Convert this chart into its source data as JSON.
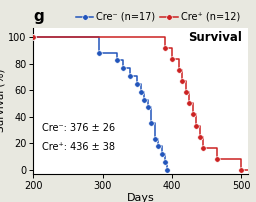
{
  "title": "Survival",
  "xlabel": "Days",
  "ylabel": "Survival (%)",
  "xlim": [
    200,
    510
  ],
  "ylim": [
    -3,
    107
  ],
  "xticks": [
    200,
    300,
    400,
    500
  ],
  "yticks": [
    0,
    20,
    40,
    60,
    80,
    100
  ],
  "panel_label": "g",
  "blue_label": "Cre⁻ (n=17)",
  "red_label": "Cre⁺ (n=12)",
  "annotation_line1": "Cre⁻: 376 ± 26",
  "annotation_line2": "Cre⁺: 436 ± 38",
  "blue_color": "#2255bb",
  "red_color": "#cc2222",
  "blue_x": [
    200,
    290,
    295,
    310,
    320,
    330,
    340,
    350,
    355,
    360,
    365,
    370,
    375,
    380,
    385,
    390,
    393,
    396
  ],
  "blue_y": [
    100,
    100,
    88.2,
    88.2,
    82.4,
    76.5,
    70.6,
    64.7,
    58.8,
    52.9,
    47.1,
    35.3,
    23.5,
    17.6,
    11.8,
    5.9,
    0,
    0
  ],
  "red_x": [
    200,
    370,
    390,
    400,
    410,
    415,
    420,
    425,
    430,
    435,
    440,
    445,
    455,
    465,
    475,
    490,
    500,
    510
  ],
  "red_y": [
    100,
    100,
    91.7,
    83.3,
    75.0,
    66.7,
    58.3,
    50.0,
    41.7,
    33.3,
    25.0,
    16.7,
    16.7,
    8.3,
    8.3,
    8.3,
    0,
    0
  ],
  "background_color": "#e8e8e0",
  "plot_bg": "#ffffff",
  "fig_width": 2.56,
  "fig_height": 2.02
}
